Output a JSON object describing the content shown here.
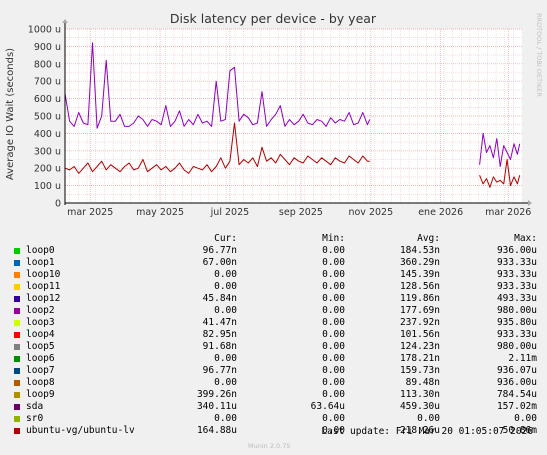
{
  "chart_data": {
    "type": "line",
    "title": "Disk latency per device - by year",
    "ylabel": "Average IO Wait (seconds)",
    "side_label": "RRDTOOL / TOBI OETIKER",
    "y_ticks": [
      "0",
      "100 u",
      "200 u",
      "300 u",
      "400 u",
      "500 u",
      "600 u",
      "700 u",
      "800 u",
      "900 u",
      "1000 u"
    ],
    "ylim_microseconds": [
      0,
      1000
    ],
    "x_ticks": [
      "mar 2025",
      "may 2025",
      "jul 2025",
      "sep 2025",
      "nov 2025",
      "ene 2026",
      "mar 2026"
    ],
    "x_tick_days": [
      55,
      116,
      177,
      239,
      300,
      361,
      420
    ],
    "xlim_days": [
      33,
      432
    ],
    "grid": true,
    "series": [
      {
        "name": "loop2",
        "color": "#8f00c0",
        "segments": [
          {
            "x": [
              33,
              37,
              41,
              45,
              49,
              53,
              57,
              61,
              65,
              69,
              73,
              77,
              81,
              85,
              89,
              93,
              97,
              101,
              105,
              109,
              113,
              117,
              121,
              125,
              129,
              133,
              137,
              141,
              145,
              149,
              153,
              157,
              161,
              165,
              169,
              173,
              177,
              181,
              185,
              189,
              193,
              197,
              201,
              205,
              209,
              213,
              217,
              221,
              225,
              229,
              233,
              237,
              241,
              245,
              249,
              253,
              257,
              261,
              265,
              269,
              273,
              277,
              281,
              285,
              289,
              293,
              297,
              299
            ],
            "y": [
              630,
              470,
              440,
              520,
              460,
              450,
              920,
              430,
              500,
              820,
              470,
              470,
              510,
              440,
              440,
              460,
              500,
              480,
              440,
              480,
              470,
              450,
              560,
              440,
              470,
              530,
              440,
              480,
              450,
              510,
              460,
              470,
              440,
              700,
              470,
              480,
              760,
              780,
              470,
              510,
              490,
              450,
              460,
              640,
              440,
              480,
              510,
              560,
              440,
              480,
              450,
              470,
              510,
              460,
              450,
              480,
              470,
              440,
              490,
              460,
              480,
              470,
              520,
              450,
              460,
              520,
              450,
              480
            ]
          },
          {
            "x": [
              395,
              398,
              401,
              404,
              407,
              410,
              413,
              416,
              419,
              422,
              425,
              428,
              430
            ],
            "y": [
              220,
              400,
              290,
              330,
              260,
              370,
              210,
              330,
              290,
              250,
              340,
              280,
              340
            ]
          }
        ]
      },
      {
        "name": "ubuntu-vg/ubuntu-lv",
        "color": "#b00000",
        "segments": [
          {
            "x": [
              33,
              37,
              41,
              45,
              49,
              53,
              57,
              61,
              65,
              69,
              73,
              77,
              81,
              85,
              89,
              93,
              97,
              101,
              105,
              109,
              113,
              117,
              121,
              125,
              129,
              133,
              137,
              141,
              145,
              149,
              153,
              157,
              161,
              165,
              169,
              173,
              177,
              181,
              185,
              189,
              193,
              197,
              201,
              205,
              209,
              213,
              217,
              221,
              225,
              229,
              233,
              237,
              241,
              245,
              249,
              253,
              257,
              261,
              265,
              269,
              273,
              277,
              281,
              285,
              289,
              293,
              297,
              299
            ],
            "y": [
              200,
              190,
              210,
              170,
              200,
              230,
              180,
              210,
              240,
              190,
              220,
              200,
              180,
              210,
              230,
              190,
              200,
              250,
              180,
              200,
              220,
              190,
              210,
              180,
              200,
              230,
              190,
              170,
              210,
              200,
              190,
              220,
              180,
              210,
              260,
              200,
              240,
              460,
              220,
              250,
              230,
              260,
              210,
              320,
              240,
              260,
              230,
              280,
              250,
              220,
              260,
              240,
              230,
              270,
              250,
              230,
              260,
              240,
              220,
              260,
              240,
              230,
              270,
              250,
              230,
              270,
              240,
              240
            ]
          },
          {
            "x": [
              395,
              398,
              401,
              404,
              407,
              410,
              413,
              416,
              419,
              422,
              425,
              428,
              430
            ],
            "y": [
              160,
              110,
              140,
              90,
              150,
              120,
              130,
              110,
              250,
              100,
              150,
              110,
              160
            ]
          }
        ]
      }
    ]
  },
  "legend": {
    "headers": [
      "Cur:",
      "Min:",
      "Avg:",
      "Max:"
    ],
    "rows": [
      {
        "name": "loop0",
        "color": "#00cc00",
        "cur": "96.77n",
        "min": "0.00",
        "avg": "184.53n",
        "max": "936.00u"
      },
      {
        "name": "loop1",
        "color": "#0066b3",
        "cur": "67.00n",
        "min": "0.00",
        "avg": "360.29n",
        "max": "933.33u"
      },
      {
        "name": "loop10",
        "color": "#ff8000",
        "cur": "0.00",
        "min": "0.00",
        "avg": "145.39n",
        "max": "933.33u"
      },
      {
        "name": "loop11",
        "color": "#ffcc00",
        "cur": "0.00",
        "min": "0.00",
        "avg": "128.56n",
        "max": "933.33u"
      },
      {
        "name": "loop12",
        "color": "#330099",
        "cur": "45.84n",
        "min": "0.00",
        "avg": "119.86n",
        "max": "493.33u"
      },
      {
        "name": "loop2",
        "color": "#990099",
        "cur": "0.00",
        "min": "0.00",
        "avg": "177.69n",
        "max": "980.00u"
      },
      {
        "name": "loop3",
        "color": "#ccff00",
        "cur": "41.47n",
        "min": "0.00",
        "avg": "237.92n",
        "max": "935.80u"
      },
      {
        "name": "loop4",
        "color": "#ff0000",
        "cur": "82.95n",
        "min": "0.00",
        "avg": "101.56n",
        "max": "933.33u"
      },
      {
        "name": "loop5",
        "color": "#808080",
        "cur": "91.68n",
        "min": "0.00",
        "avg": "124.23n",
        "max": "980.00u"
      },
      {
        "name": "loop6",
        "color": "#008f00",
        "cur": "0.00",
        "min": "0.00",
        "avg": "178.21n",
        "max": "2.11m"
      },
      {
        "name": "loop7",
        "color": "#00487d",
        "cur": "96.77n",
        "min": "0.00",
        "avg": "159.73n",
        "max": "936.07u"
      },
      {
        "name": "loop8",
        "color": "#b35a00",
        "cur": "0.00",
        "min": "0.00",
        "avg": "89.48n",
        "max": "936.00u"
      },
      {
        "name": "loop9",
        "color": "#b38f00",
        "cur": "399.26n",
        "min": "0.00",
        "avg": "113.30n",
        "max": "784.54u"
      },
      {
        "name": "sda",
        "color": "#6b006b",
        "cur": "340.11u",
        "min": "63.64u",
        "avg": "459.30u",
        "max": "157.02m"
      },
      {
        "name": "sr0",
        "color": "#8fb300",
        "cur": "0.00",
        "min": "0.00",
        "avg": "0.00",
        "max": "0.00"
      },
      {
        "name": "ubuntu-vg/ubuntu-lv",
        "color": "#b30000",
        "cur": "164.88u",
        "min": "0.00",
        "avg": "218.26u",
        "max": "50.86m"
      }
    ]
  },
  "footer": {
    "last_update": "Last update: Fri Mar 20 01:05:07 2026",
    "munin": "Munin 2.0.75"
  }
}
